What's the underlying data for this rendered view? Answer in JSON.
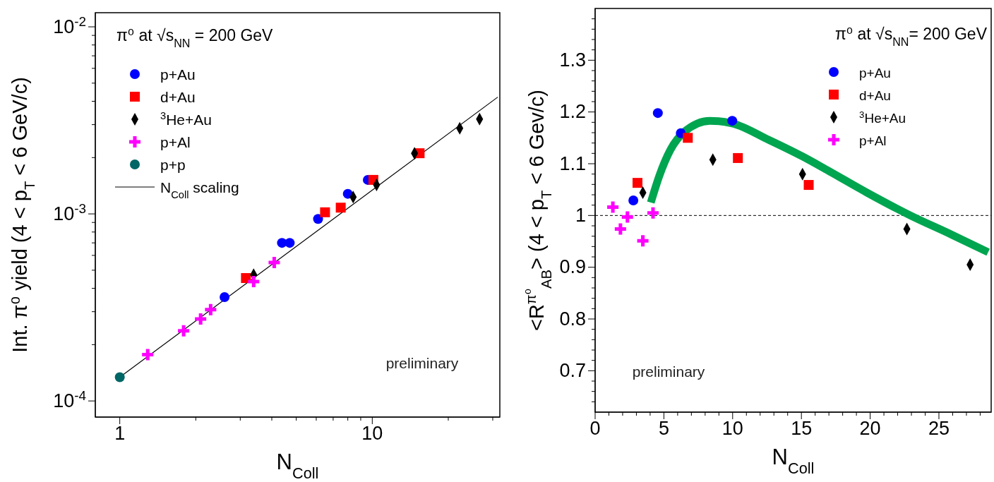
{
  "chart_data": [
    {
      "type": "scatter",
      "title": "π⁰ at √s$_{NN}$ = 200 GeV",
      "xlabel": "N$_{Coll}$",
      "ylabel": "Int. π⁰ yield (4 < p$_{T}$ < 6 GeV/c)",
      "log": "xy",
      "legend": "top left",
      "annotations": [
        "preliminary"
      ],
      "xlim": [
        0.8,
        32
      ],
      "ylim": [
        8.2e-05,
        0.0119
      ],
      "xticks": [
        1,
        {
          "value": 2,
          "label": null
        },
        {
          "value": 3,
          "label": null
        },
        {
          "value": 4,
          "label": null
        },
        {
          "value": 5,
          "label": null
        },
        {
          "value": 6,
          "label": null
        },
        {
          "value": 7,
          "label": null
        },
        {
          "value": 8,
          "label": null
        },
        {
          "value": 9,
          "label": null
        },
        10,
        {
          "value": 20,
          "label": null
        },
        {
          "value": 30,
          "label": null
        }
      ],
      "yticks": [
        {
          "value": 0.0001,
          "label": "10$^{-4}$"
        },
        {
          "value": 0.0002,
          "label": null
        },
        {
          "value": 0.0003,
          "label": null
        },
        {
          "value": 0.0004,
          "label": null
        },
        {
          "value": 0.0005,
          "label": null
        },
        {
          "value": 0.0006,
          "label": null
        },
        {
          "value": 0.0007,
          "label": null
        },
        {
          "value": 0.0008,
          "label": null
        },
        {
          "value": 0.0009,
          "label": null
        },
        {
          "value": 0.001,
          "label": "10$^{-3}$"
        },
        {
          "value": 0.002,
          "label": null
        },
        {
          "value": 0.003,
          "label": null
        },
        {
          "value": 0.004,
          "label": null
        },
        {
          "value": 0.005,
          "label": null
        },
        {
          "value": 0.006,
          "label": null
        },
        {
          "value": 0.007,
          "label": null
        },
        {
          "value": 0.008,
          "label": null
        },
        {
          "value": 0.009,
          "label": null
        },
        {
          "value": 0.01,
          "label": "10$^{-2}$"
        }
      ],
      "series": [
        {
          "name": "p+Au",
          "color": "#0000ff",
          "marker": "circle",
          "x": [
            2.6,
            4.39,
            4.71,
            6.1,
            8.0,
            9.6
          ],
          "values": [
            0.000359,
            0.0007,
            0.0007,
            0.00094,
            0.00128,
            0.00152
          ]
        },
        {
          "name": "d+Au",
          "color": "#ff0000",
          "marker": "square",
          "x": [
            3.16,
            6.5,
            7.5,
            10.1,
            15.4
          ],
          "values": [
            0.000454,
            0.00102,
            0.00108,
            0.00152,
            0.00211
          ]
        },
        {
          "name": "$^{3}$He+Au",
          "color": "#000000",
          "marker": "diamond",
          "x": [
            3.39,
            8.4,
            10.4,
            14.7,
            22.2,
            26.6
          ],
          "values": [
            0.000473,
            0.00123,
            0.00143,
            0.00211,
            0.00287,
            0.00321
          ]
        },
        {
          "name": "p+Al",
          "color": "#ff00ff",
          "marker": "cross",
          "x": [
            1.29,
            1.79,
            2.09,
            2.29,
            3.39,
            4.09
          ],
          "values": [
            0.000177,
            0.000237,
            0.000274,
            0.000308,
            0.000435,
            0.00055
          ]
        },
        {
          "name": "p+p",
          "color": "#006666",
          "marker": "circle",
          "x": [
            1
          ],
          "values": [
            0.000134
          ]
        },
        {
          "name": "N$_{Coll}$ scaling",
          "type": "line",
          "color": "#000000",
          "marker": "none",
          "line_style": "solid",
          "x": [
            1,
            31.4
          ],
          "values": [
            0.000134,
            0.00421
          ]
        }
      ]
    },
    {
      "type": "scatter",
      "title": "π⁰ at √s$_{NN}$= 200 GeV",
      "xlabel": "N$_{Coll}$",
      "ylabel": "<R$^{π⁰}$$_{AB}$> (4 < p$_{T}$ < 6 Gev/c)",
      "legend": "top right",
      "annotations": [
        "preliminary"
      ],
      "xlim": [
        0,
        28.8
      ],
      "ylim": [
        0.62,
        1.4
      ],
      "xticks": [
        0,
        {
          "value": 1,
          "label": null
        },
        {
          "value": 2,
          "label": null
        },
        {
          "value": 3,
          "label": null
        },
        {
          "value": 4,
          "label": null
        },
        5,
        {
          "value": 6,
          "label": null
        },
        {
          "value": 7,
          "label": null
        },
        {
          "value": 8,
          "label": null
        },
        {
          "value": 9,
          "label": null
        },
        10,
        {
          "value": 11,
          "label": null
        },
        {
          "value": 12,
          "label": null
        },
        {
          "value": 13,
          "label": null
        },
        {
          "value": 14,
          "label": null
        },
        15,
        {
          "value": 16,
          "label": null
        },
        {
          "value": 17,
          "label": null
        },
        {
          "value": 18,
          "label": null
        },
        {
          "value": 19,
          "label": null
        },
        20,
        {
          "value": 21,
          "label": null
        },
        {
          "value": 22,
          "label": null
        },
        {
          "value": 23,
          "label": null
        },
        {
          "value": 24,
          "label": null
        },
        25,
        {
          "value": 26,
          "label": null
        },
        {
          "value": 27,
          "label": null
        },
        {
          "value": 28,
          "label": null
        }
      ],
      "yticks": [
        {
          "value": 0.64,
          "label": null
        },
        {
          "value": 0.66,
          "label": null
        },
        {
          "value": 0.68,
          "label": null
        },
        0.7,
        {
          "value": 0.72,
          "label": null
        },
        {
          "value": 0.74,
          "label": null
        },
        {
          "value": 0.76,
          "label": null
        },
        {
          "value": 0.78,
          "label": null
        },
        0.8,
        {
          "value": 0.82,
          "label": null
        },
        {
          "value": 0.84,
          "label": null
        },
        {
          "value": 0.86,
          "label": null
        },
        {
          "value": 0.88,
          "label": null
        },
        0.9,
        {
          "value": 0.92,
          "label": null
        },
        {
          "value": 0.94,
          "label": null
        },
        {
          "value": 0.96,
          "label": null
        },
        {
          "value": 0.98,
          "label": null
        },
        1,
        {
          "value": 1.02,
          "label": null
        },
        {
          "value": 1.04,
          "label": null
        },
        {
          "value": 1.06,
          "label": null
        },
        {
          "value": 1.08,
          "label": null
        },
        1.1,
        {
          "value": 1.12,
          "label": null
        },
        {
          "value": 1.14,
          "label": null
        },
        {
          "value": 1.16,
          "label": null
        },
        {
          "value": 1.18,
          "label": null
        },
        1.2,
        {
          "value": 1.22,
          "label": null
        },
        {
          "value": 1.24,
          "label": null
        },
        {
          "value": 1.26,
          "label": null
        },
        {
          "value": 1.28,
          "label": null
        },
        1.3,
        {
          "value": 1.32,
          "label": null
        },
        {
          "value": 1.34,
          "label": null
        },
        {
          "value": 1.36,
          "label": null
        },
        {
          "value": 1.38,
          "label": null
        }
      ],
      "ref_lines": [
        {
          "axis": "y",
          "value": 1,
          "line_style": "dashed",
          "color": "#000000"
        }
      ],
      "series": [
        {
          "name": "p+Au",
          "color": "#0000ff",
          "marker": "circle",
          "x": [
            2.78,
            4.56,
            6.23,
            9.97
          ],
          "values": [
            1.029,
            1.198,
            1.159,
            1.183
          ]
        },
        {
          "name": "d+Au",
          "color": "#ff0000",
          "marker": "square",
          "x": [
            3.08,
            6.74,
            10.38,
            15.53
          ],
          "values": [
            1.063,
            1.15,
            1.111,
            1.059
          ]
        },
        {
          "name": "$^{3}$He+Au",
          "color": "#000000",
          "marker": "diamond",
          "x": [
            3.47,
            8.56,
            15.08,
            22.67,
            27.27
          ],
          "values": [
            1.044,
            1.108,
            1.08,
            0.974,
            0.905
          ]
        },
        {
          "name": "p+Al",
          "color": "#ff00ff",
          "marker": "cross",
          "x": [
            1.29,
            1.84,
            2.35,
            3.47,
            4.21
          ],
          "values": [
            1.016,
            0.974,
            0.997,
            0.951,
            1.005
          ]
        },
        {
          "type": "line",
          "color": "#00a550",
          "marker": "none",
          "line_style": "solid",
          "x": [
            4.05,
            4.66,
            5.48,
            6.5,
            8.34,
            9.97,
            12.63,
            15.08,
            16.92,
            19.78,
            22.85,
            25.92,
            28.58
          ],
          "values": [
            1.025,
            1.076,
            1.127,
            1.162,
            1.183,
            1.178,
            1.146,
            1.114,
            1.087,
            1.044,
            1.001,
            0.963,
            0.929
          ]
        }
      ]
    }
  ]
}
